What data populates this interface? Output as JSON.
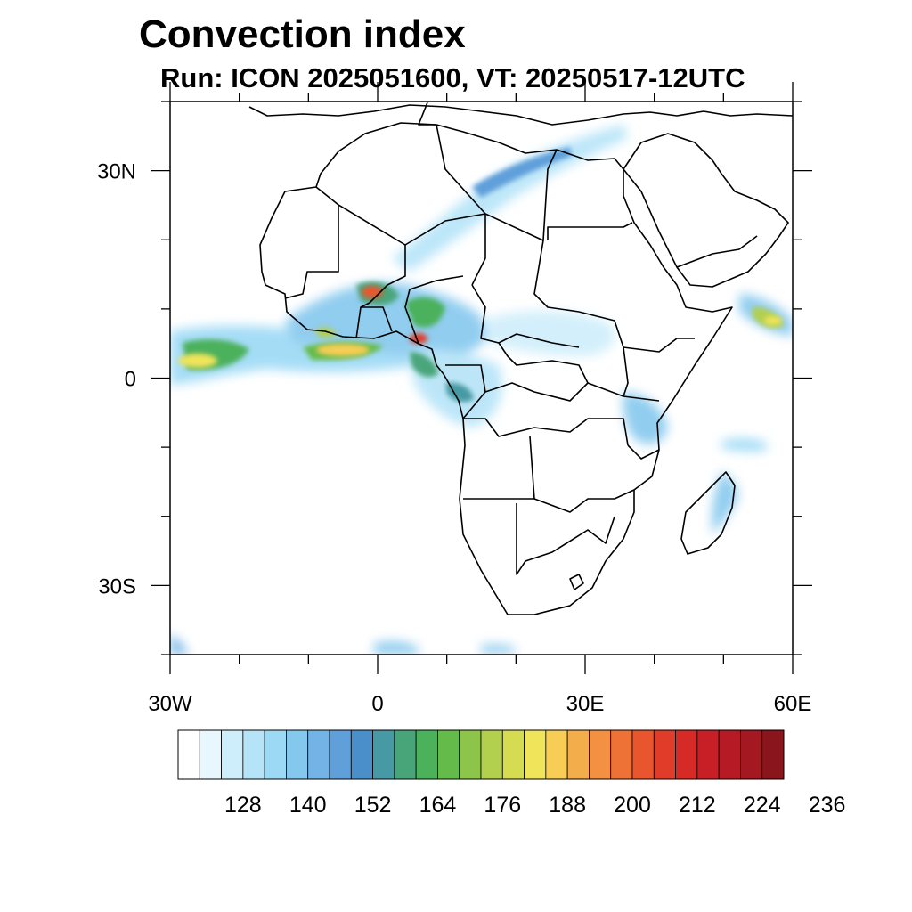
{
  "title": "Convection index",
  "subtitle": "Run: ICON 2025051600,  VT: 20250517-12UTC",
  "map": {
    "region": "Africa",
    "projection": "cylindrical equidistant",
    "lon_range": [
      -30,
      60
    ],
    "lat_range": [
      -40,
      40
    ],
    "lon_tick_labels": [
      {
        "lon": -30,
        "text": "30W"
      },
      {
        "lon": 0,
        "text": "0"
      },
      {
        "lon": 30,
        "text": "30E"
      },
      {
        "lon": 60,
        "text": "60E"
      }
    ],
    "lat_tick_labels": [
      {
        "lat": 30,
        "text": "30N"
      },
      {
        "lat": 0,
        "text": "0"
      },
      {
        "lat": -30,
        "text": "30S"
      }
    ]
  },
  "colorbar": {
    "colors": [
      "#ffffff",
      "#e8f6fd",
      "#cfeefb",
      "#b5e4f8",
      "#9bd9f5",
      "#85c8ee",
      "#73b3e5",
      "#5f9fda",
      "#4a8fc9",
      "#4799a3",
      "#48a57a",
      "#4bb15b",
      "#64bb4a",
      "#8cc54a",
      "#b2cf4e",
      "#d6dc52",
      "#f0e45a",
      "#f7cd55",
      "#f4ad4b",
      "#f39041",
      "#ee7136",
      "#e9562d",
      "#e03c29",
      "#d62a27",
      "#c81f27",
      "#b61a24",
      "#a31821",
      "#8b151c"
    ],
    "tick_labels": [
      "128",
      "140",
      "152",
      "164",
      "176",
      "188",
      "200",
      "212",
      "224",
      "236"
    ]
  }
}
